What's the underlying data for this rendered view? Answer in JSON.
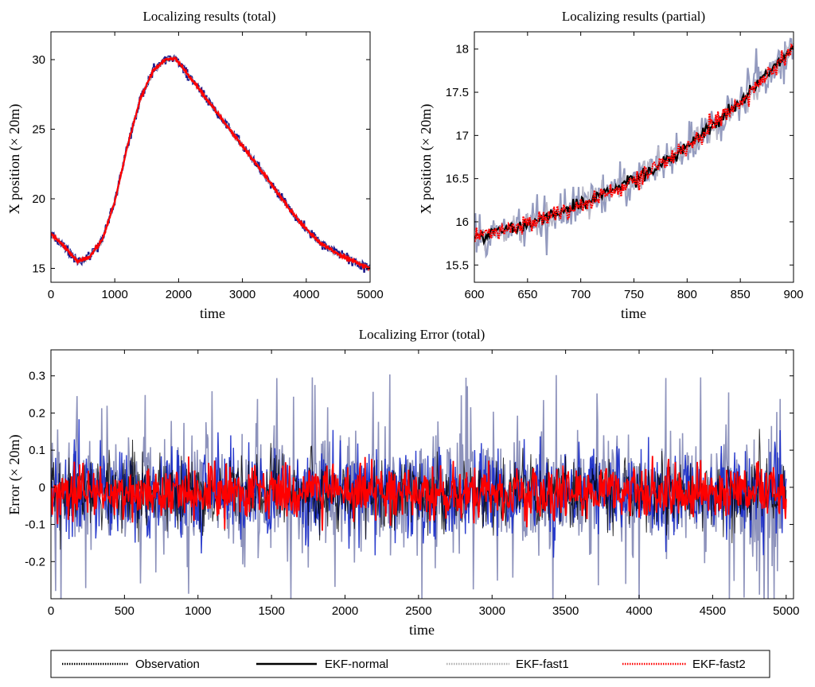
{
  "colors": {
    "observation": "#1a1a8c",
    "ekf_normal": "#000000",
    "ekf_fast1": "#b8b8c8",
    "ekf_fast2": "#ff0000",
    "error_observation": "#1428c8",
    "error_fast1_band": "#7a80b0"
  },
  "legend": {
    "placement": "bottom",
    "items": [
      {
        "name": "Observation",
        "style": "dotted",
        "color": "#000000"
      },
      {
        "name": "EKF-normal",
        "style": "solid",
        "color": "#000000"
      },
      {
        "name": "EKF-fast1",
        "style": "dotted",
        "color": "#b0b0b0"
      },
      {
        "name": "EKF-fast2",
        "style": "dotted",
        "color": "#ff0000"
      }
    ]
  },
  "chart_data": [
    {
      "id": "total",
      "type": "line",
      "title": "Localizing results (total)",
      "xlabel": "time",
      "ylabel": "X position (× 20m)",
      "xlim": [
        0,
        5000
      ],
      "ylim": [
        14,
        32
      ],
      "xticks": [
        0,
        1000,
        2000,
        3000,
        4000,
        5000
      ],
      "yticks": [
        15,
        20,
        25,
        30
      ],
      "grid": false,
      "x": [
        0,
        200,
        420,
        600,
        800,
        1000,
        1200,
        1400,
        1600,
        1800,
        1950,
        2100,
        2400,
        2700,
        3000,
        3300,
        3600,
        3900,
        4200,
        4500,
        4800,
        5000
      ],
      "y": [
        17.5,
        16.6,
        15.5,
        15.8,
        17.0,
        19.8,
        23.8,
        27.2,
        29.2,
        30.0,
        30.1,
        29.2,
        27.4,
        25.6,
        23.8,
        22.0,
        20.1,
        18.3,
        16.9,
        16.0,
        15.4,
        15.0
      ],
      "noise": {
        "observation": 0.15,
        "fast1": 0.08,
        "fast2": 0.05
      }
    },
    {
      "id": "partial",
      "type": "line",
      "title": "Localizing results (partial)",
      "xlabel": "time",
      "ylabel": "X position (× 20m)",
      "xlim": [
        600,
        900
      ],
      "ylim": [
        15.3,
        18.2
      ],
      "xticks": [
        600,
        650,
        700,
        750,
        800,
        850,
        900
      ],
      "yticks": [
        15.5,
        16,
        16.5,
        17,
        17.5,
        18
      ],
      "grid": false,
      "x": [
        600,
        650,
        700,
        750,
        800,
        850,
        900
      ],
      "y": [
        15.82,
        15.98,
        16.2,
        16.48,
        16.86,
        17.38,
        18.02
      ],
      "noise": {
        "observation": 0.15,
        "fast1": 0.08,
        "fast2": 0.05
      }
    },
    {
      "id": "error",
      "type": "line",
      "title": "Localizing Error (total)",
      "xlabel": "time",
      "ylabel": "Error (× 20m)",
      "xlim": [
        0,
        5050
      ],
      "ylim": [
        -0.3,
        0.37
      ],
      "xticks": [
        0,
        500,
        1000,
        1500,
        2000,
        2500,
        3000,
        3500,
        4000,
        4500,
        5000
      ],
      "yticks": [
        -0.2,
        -0.1,
        0,
        0.1,
        0.2,
        0.3
      ],
      "grid": false,
      "error_sd": {
        "observation": 0.06,
        "fast1": 0.07,
        "fast2": 0.035
      },
      "error_range": {
        "min": -0.29,
        "max": 0.33
      }
    }
  ]
}
